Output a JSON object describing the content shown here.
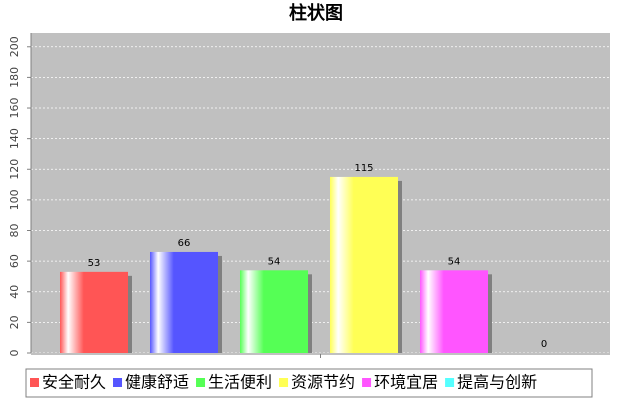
{
  "chart_data": {
    "type": "bar",
    "title": "柱状图",
    "categories": [
      null
    ],
    "series": [
      {
        "name": "安全耐久",
        "color": "#ff5555",
        "values": [
          53
        ]
      },
      {
        "name": "健康舒适",
        "color": "#5555ff",
        "values": [
          66
        ]
      },
      {
        "name": "生活便利",
        "color": "#55ff55",
        "values": [
          54
        ]
      },
      {
        "name": "资源节约",
        "color": "#ffff55",
        "values": [
          115
        ]
      },
      {
        "name": "环境宜居",
        "color": "#ff55ff",
        "values": [
          54
        ]
      },
      {
        "name": "提高与创新",
        "color": "#55ffff",
        "values": [
          0
        ]
      }
    ],
    "ylim": [
      0,
      209
    ],
    "yticks": [
      0,
      20,
      40,
      60,
      80,
      100,
      120,
      140,
      160,
      180,
      200
    ],
    "grid": true
  }
}
